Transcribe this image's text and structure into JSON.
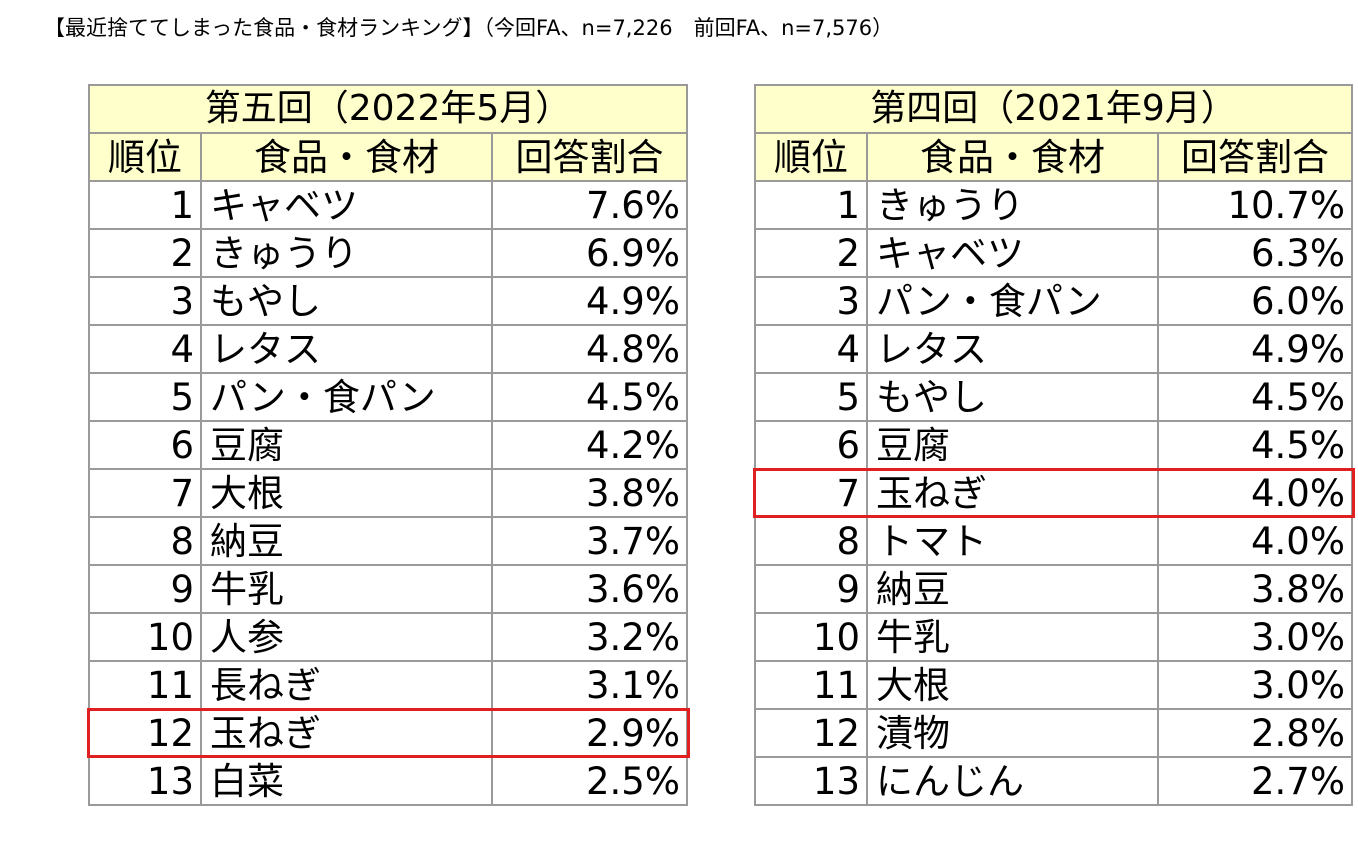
{
  "caption": "【最近捨ててしまった食品・食材ランキング】（今回FA、n=7,226　前回FA、n=7,576）",
  "left_table": {
    "title": "第五回（2022年5月）",
    "headers": [
      "順位",
      "食品・食材",
      "回答割合"
    ],
    "rows": [
      {
        "rank": "1",
        "item": "キャベツ",
        "pct": "7.6%"
      },
      {
        "rank": "2",
        "item": "きゅうり",
        "pct": "6.9%"
      },
      {
        "rank": "3",
        "item": "もやし",
        "pct": "4.9%"
      },
      {
        "rank": "4",
        "item": "レタス",
        "pct": "4.8%"
      },
      {
        "rank": "5",
        "item": "パン・食パン",
        "pct": "4.5%"
      },
      {
        "rank": "6",
        "item": "豆腐",
        "pct": "4.2%"
      },
      {
        "rank": "7",
        "item": "大根",
        "pct": "3.8%"
      },
      {
        "rank": "8",
        "item": "納豆",
        "pct": "3.7%"
      },
      {
        "rank": "9",
        "item": "牛乳",
        "pct": "3.6%"
      },
      {
        "rank": "10",
        "item": "人参",
        "pct": "3.2%"
      },
      {
        "rank": "11",
        "item": "長ねぎ",
        "pct": "3.1%"
      },
      {
        "rank": "12",
        "item": "玉ねぎ",
        "pct": "2.9%"
      },
      {
        "rank": "13",
        "item": "白菜",
        "pct": "2.5%"
      }
    ],
    "highlight_rank": "12"
  },
  "right_table": {
    "title": "第四回（2021年9月）",
    "headers": [
      "順位",
      "食品・食材",
      "回答割合"
    ],
    "rows": [
      {
        "rank": "1",
        "item": "きゅうり",
        "pct": "10.7%"
      },
      {
        "rank": "2",
        "item": "キャベツ",
        "pct": "6.3%"
      },
      {
        "rank": "3",
        "item": "パン・食パン",
        "pct": "6.0%"
      },
      {
        "rank": "4",
        "item": "レタス",
        "pct": "4.9%"
      },
      {
        "rank": "5",
        "item": "もやし",
        "pct": "4.5%"
      },
      {
        "rank": "6",
        "item": "豆腐",
        "pct": "4.5%"
      },
      {
        "rank": "7",
        "item": "玉ねぎ",
        "pct": "4.0%"
      },
      {
        "rank": "8",
        "item": "トマト",
        "pct": "4.0%"
      },
      {
        "rank": "9",
        "item": "納豆",
        "pct": "3.8%"
      },
      {
        "rank": "10",
        "item": "牛乳",
        "pct": "3.0%"
      },
      {
        "rank": "11",
        "item": "大根",
        "pct": "3.0%"
      },
      {
        "rank": "12",
        "item": "漬物",
        "pct": "2.8%"
      },
      {
        "rank": "13",
        "item": "にんじん",
        "pct": "2.7%"
      }
    ],
    "highlight_rank": "7"
  },
  "colors": {
    "header_bg": "#ffffcc",
    "grid": "#9a9a9a",
    "highlight_border": "#e02020"
  }
}
